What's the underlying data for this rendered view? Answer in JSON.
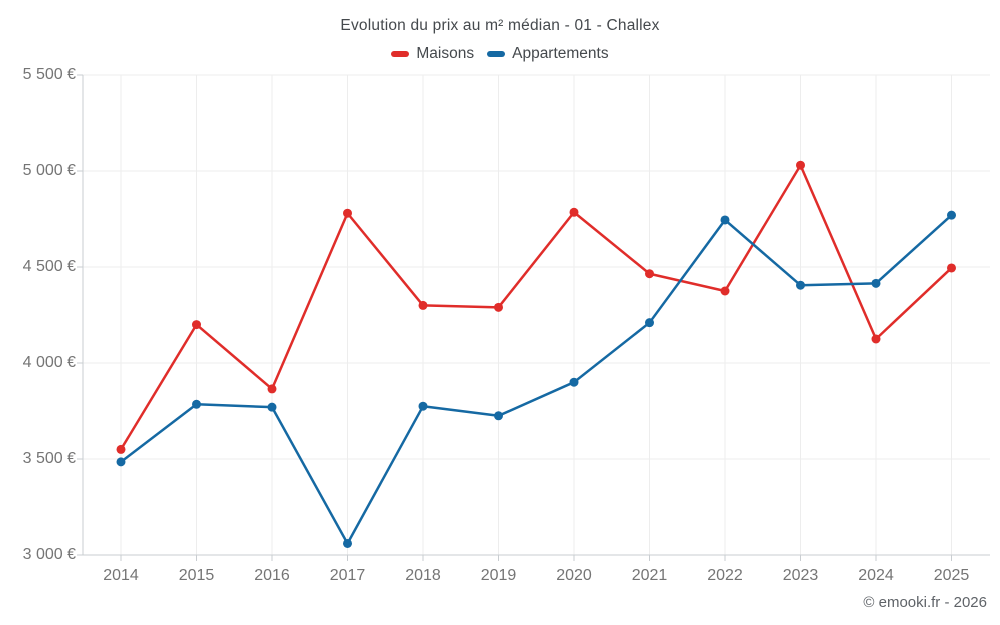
{
  "title": "Evolution du prix au m² médian - 01 - Challex",
  "footer": "© emooki.fr - 2026",
  "colors": {
    "maisons": "#e02d2a",
    "appartements": "#1569a3",
    "gridline": "#ededed",
    "axis": "#c9cdd1",
    "tick_label": "#757575",
    "title_text": "#45494d",
    "background": "#ffffff"
  },
  "chart_data": {
    "type": "line",
    "title": "Evolution du prix au m² médian - 01 - Challex",
    "categories": [
      "2014",
      "2015",
      "2016",
      "2017",
      "2018",
      "2019",
      "2020",
      "2021",
      "2022",
      "2023",
      "2024",
      "2025"
    ],
    "series": [
      {
        "name": "Maisons",
        "color": "#e02d2a",
        "values": [
          3550,
          4200,
          3865,
          4780,
          4300,
          4290,
          4785,
          4465,
          4375,
          5030,
          4125,
          4495
        ]
      },
      {
        "name": "Appartements",
        "color": "#1569a3",
        "values": [
          3485,
          3785,
          3770,
          3060,
          3775,
          3725,
          3900,
          4210,
          4745,
          4405,
          4415,
          4770
        ]
      }
    ],
    "xlabel": "",
    "ylabel": "",
    "ylim": [
      3000,
      5500
    ],
    "ytick_step": 500,
    "yticks": [
      3000,
      3500,
      4000,
      4500,
      5000,
      5500
    ],
    "ytick_labels": [
      "3 000 €",
      "3 500 €",
      "4 000 €",
      "4 500 €",
      "5 000 €",
      "5 500 €"
    ],
    "currency_suffix": " €",
    "grid": true,
    "legend_position": "top"
  }
}
